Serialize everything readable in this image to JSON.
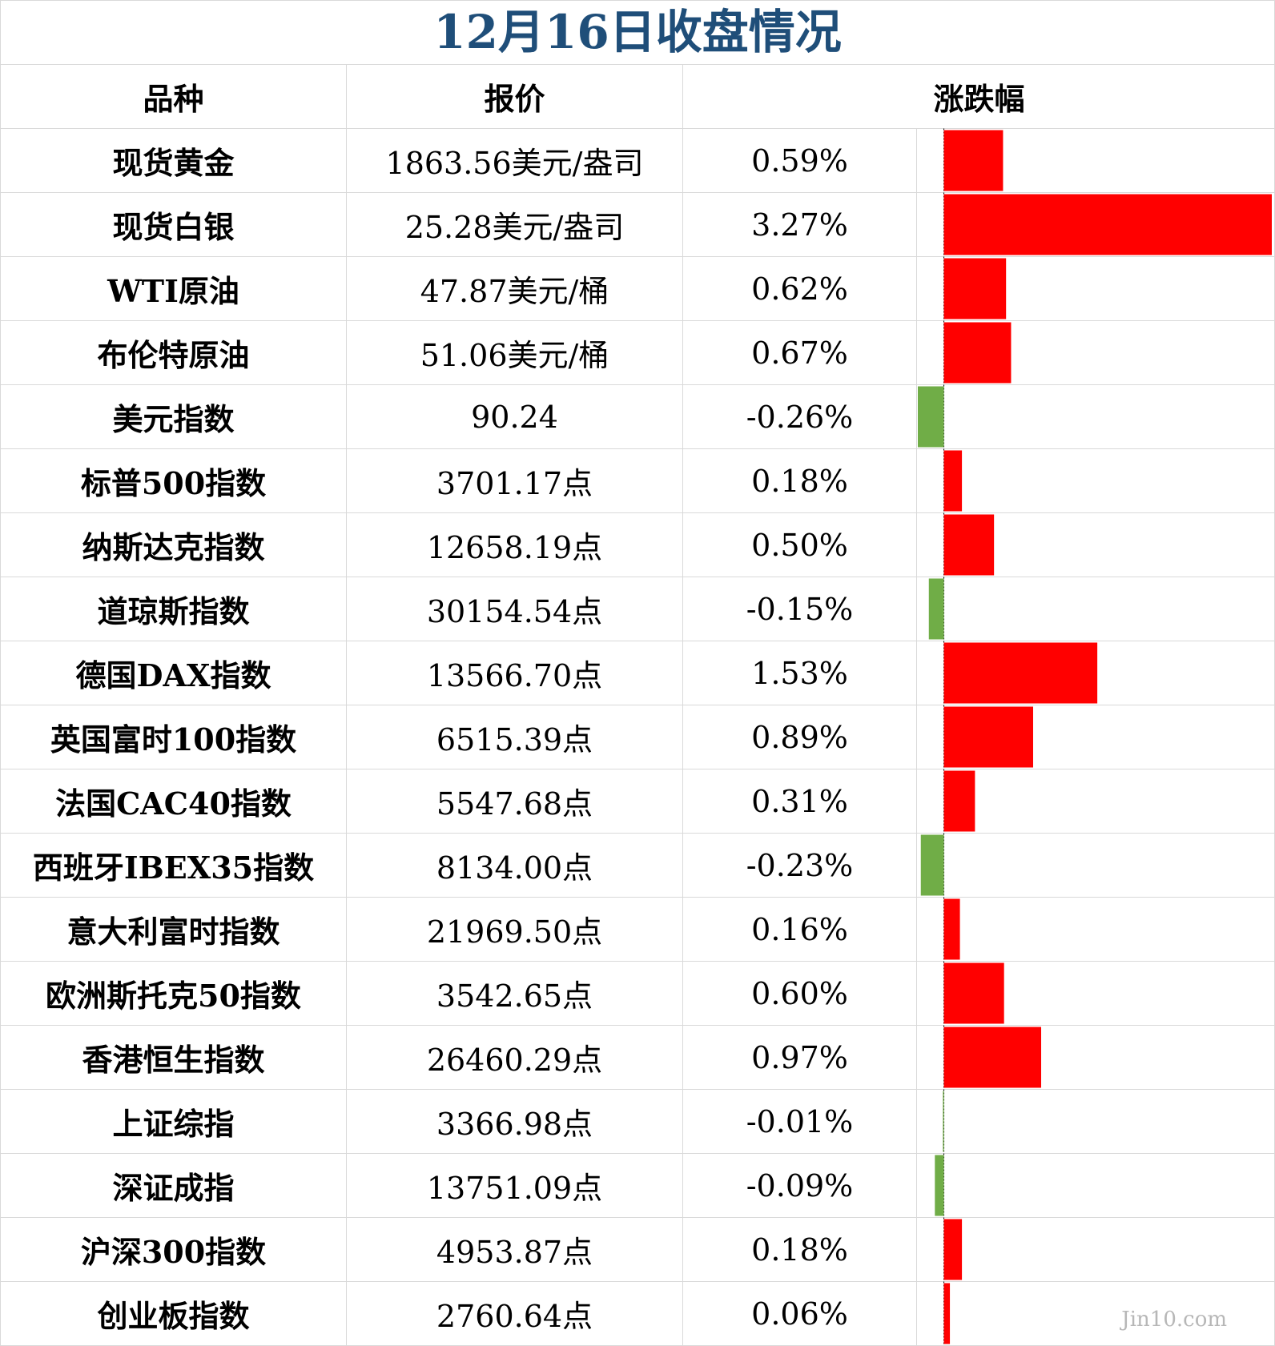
{
  "title": "12月16日收盘情况",
  "headers": {
    "name": "品种",
    "price": "报价",
    "change": "涨跌幅"
  },
  "watermark": "Jin10.com",
  "colors": {
    "title": "#1f4e79",
    "up": "#ff0000",
    "down": "#70ad47"
  },
  "chart_data": {
    "type": "bar",
    "orientation": "horizontal",
    "title": "12月16日收盘情况",
    "categories": [
      "现货黄金",
      "现货白银",
      "WTI原油",
      "布伦特原油",
      "美元指数",
      "标普500指数",
      "纳斯达克指数",
      "道琼斯指数",
      "德国DAX指数",
      "英国富时100指数",
      "法国CAC40指数",
      "西班牙IBEX35指数",
      "意大利富时指数",
      "欧洲斯托克50指数",
      "香港恒生指数",
      "上证综指",
      "深证成指",
      "沪深300指数",
      "创业板指数"
    ],
    "prices": [
      "1863.56美元/盎司",
      "25.28美元/盎司",
      "47.87美元/桶",
      "51.06美元/桶",
      "90.24",
      "3701.17点",
      "12658.19点",
      "30154.54点",
      "13566.70点",
      "6515.39点",
      "5547.68点",
      "8134.00点",
      "21969.50点",
      "3542.65点",
      "26460.29点",
      "3366.98点",
      "13751.09点",
      "4953.87点",
      "2760.64点"
    ],
    "labels": [
      "0.59%",
      "3.27%",
      "0.62%",
      "0.67%",
      "-0.26%",
      "0.18%",
      "0.50%",
      "-0.15%",
      "1.53%",
      "0.89%",
      "0.31%",
      "-0.23%",
      "0.16%",
      "0.60%",
      "0.97%",
      "-0.01%",
      "-0.09%",
      "0.18%",
      "0.06%"
    ],
    "values": [
      0.59,
      3.27,
      0.62,
      0.67,
      -0.26,
      0.18,
      0.5,
      -0.15,
      1.53,
      0.89,
      0.31,
      -0.23,
      0.16,
      0.6,
      0.97,
      -0.01,
      -0.09,
      0.18,
      0.06
    ],
    "xlim": [
      -0.26,
      3.27
    ]
  }
}
